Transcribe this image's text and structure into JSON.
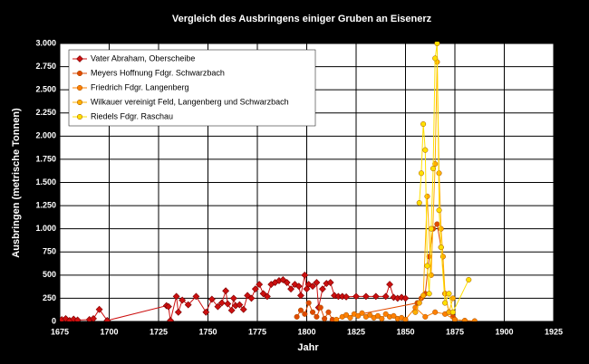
{
  "chart_data": {
    "type": "line",
    "title": "Vergleich des Ausbringens einiger Gruben an Eisenerz",
    "x_label": "Jahr",
    "y_label": "Ausbringen (metrische Tonnen)",
    "xlim": [
      1675,
      1925
    ],
    "xticks": [
      1675,
      1700,
      1725,
      1750,
      1775,
      1800,
      1825,
      1850,
      1875,
      1900,
      1925
    ],
    "ylim": [
      0,
      3000
    ],
    "yticks": [
      0,
      250,
      500,
      750,
      {
        "value": 1000,
        "label": "1.000"
      },
      {
        "value": 1250,
        "label": "1.250"
      },
      {
        "value": 1500,
        "label": "1.500"
      },
      {
        "value": 1750,
        "label": "1.750"
      },
      {
        "value": 2000,
        "label": "2.000"
      },
      {
        "value": 2250,
        "label": "2.250"
      },
      {
        "value": 2500,
        "label": "2.500"
      },
      {
        "value": 2750,
        "label": "2.750"
      },
      {
        "value": 3000,
        "label": "3.000"
      }
    ],
    "grid": true,
    "legend": "upper left",
    "series": [
      {
        "name": "Vater Abraham, Oberscheibe",
        "color": "#cc1010",
        "marker": "diamond",
        "x": [
          1676,
          1678,
          1680,
          1682,
          1684,
          1690,
          1692,
          1695,
          1699,
          1729,
          1730,
          1731,
          1734,
          1735,
          1737,
          1740,
          1744,
          1749,
          1752,
          1755,
          1757,
          1759,
          1760,
          1762,
          1763,
          1764,
          1766,
          1768,
          1770,
          1772,
          1774,
          1776,
          1778,
          1780,
          1782,
          1784,
          1786,
          1788,
          1790,
          1792,
          1794,
          1796,
          1797,
          1799,
          1800,
          1801,
          1803,
          1805,
          1806,
          1808,
          1810,
          1812,
          1814,
          1816,
          1818,
          1820,
          1825,
          1830,
          1835,
          1840,
          1842,
          1844,
          1846,
          1848,
          1850
        ],
        "values": [
          20,
          30,
          10,
          25,
          15,
          20,
          30,
          130,
          10,
          170,
          160,
          10,
          270,
          100,
          230,
          180,
          270,
          100,
          240,
          160,
          200,
          330,
          190,
          120,
          250,
          170,
          180,
          130,
          280,
          250,
          350,
          400,
          300,
          270,
          400,
          420,
          440,
          450,
          420,
          350,
          400,
          380,
          280,
          500,
          350,
          400,
          380,
          420,
          150,
          350,
          410,
          420,
          280,
          270,
          270,
          265,
          270,
          270,
          270,
          270,
          400,
          260,
          250,
          260,
          250
        ]
      },
      {
        "name": "Meyers Hoffnung Fdgr. Schwarzbach",
        "color": "#e04a00",
        "marker": "circle",
        "x": [
          1795,
          1797,
          1799,
          1801,
          1803,
          1805,
          1807,
          1809,
          1811,
          1813,
          1856,
          1858,
          1860,
          1862,
          1864,
          1866,
          1868,
          1870,
          1872,
          1874
        ],
        "values": [
          50,
          120,
          80,
          200,
          100,
          50,
          150,
          30,
          100,
          20,
          200,
          250,
          300,
          700,
          1000,
          1050,
          800,
          300,
          100,
          50
        ]
      },
      {
        "name": "Friedrich Fdgr. Langenberg",
        "color": "#ff8000",
        "marker": "circle",
        "x": [
          1815,
          1818,
          1820,
          1822,
          1824,
          1826,
          1828,
          1830,
          1832,
          1834,
          1836,
          1838,
          1840,
          1842,
          1844,
          1846,
          1848,
          1850,
          1855,
          1860,
          1865,
          1870,
          1875,
          1880,
          1885
        ],
        "values": [
          20,
          50,
          70,
          40,
          80,
          60,
          90,
          50,
          70,
          40,
          60,
          30,
          80,
          50,
          60,
          30,
          40,
          20,
          150,
          50,
          100,
          80,
          20,
          10,
          5
        ]
      },
      {
        "name": "Wilkauer vereinigt Feld, Langenberg und Schwarzbach",
        "color": "#ffb000",
        "marker": "circle",
        "x": [
          1855,
          1857,
          1859,
          1861,
          1863,
          1865,
          1866,
          1867,
          1868,
          1869,
          1870,
          1872,
          1874
        ],
        "values": [
          100,
          200,
          280,
          1350,
          500,
          1700,
          2800,
          1600,
          1000,
          700,
          300,
          100,
          250
        ]
      },
      {
        "name": "Riedels Fdgr. Raschau",
        "color": "#ffe000",
        "marker": "circle",
        "x": [
          1857,
          1858,
          1859,
          1860,
          1861,
          1862,
          1863,
          1864,
          1865,
          1866,
          1867,
          1868,
          1870,
          1872,
          1874,
          1882
        ],
        "values": [
          1280,
          1600,
          2130,
          1850,
          600,
          300,
          1000,
          1650,
          2840,
          3000,
          1200,
          800,
          200,
          300,
          100,
          450
        ]
      }
    ]
  }
}
